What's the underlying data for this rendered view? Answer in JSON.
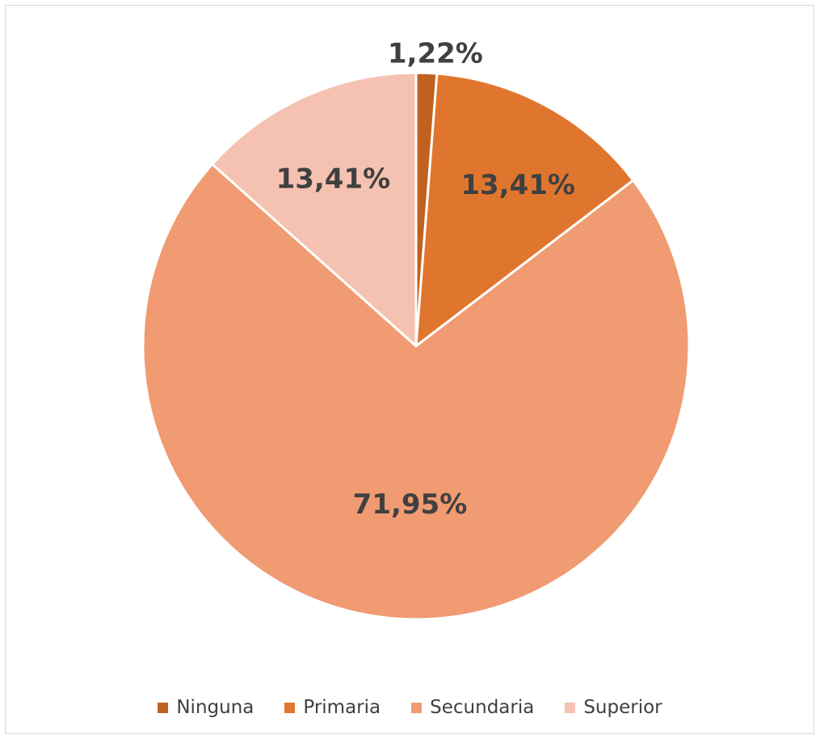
{
  "chart_data": {
    "type": "pie",
    "categories": [
      "Ninguna",
      "Primaria",
      "Secundaria",
      "Superior"
    ],
    "values": [
      1.22,
      13.41,
      71.95,
      13.41
    ],
    "data_labels": [
      "1,22%",
      "13,41%",
      "71,95%",
      "13,41%"
    ],
    "colors": [
      "#c0611f",
      "#e0762e",
      "#f09b72",
      "#f5c2b1"
    ],
    "legend_position": "bottom",
    "start_angle": "top, clockwise"
  }
}
